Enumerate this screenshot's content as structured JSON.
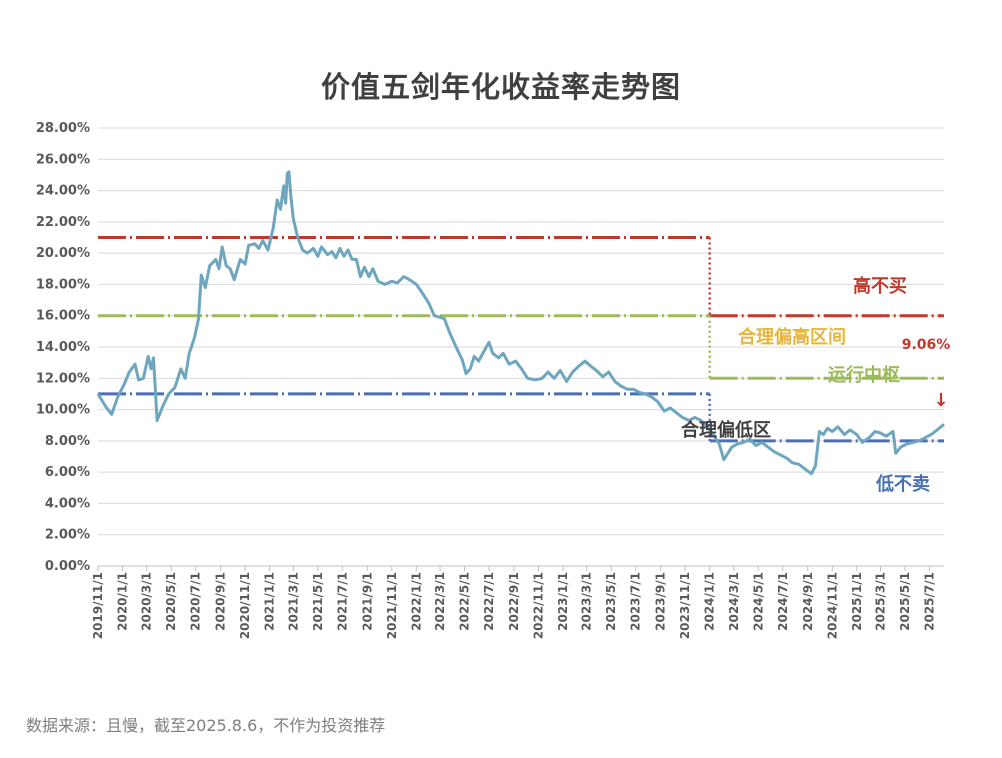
{
  "chart_data": {
    "type": "line",
    "title": "价值五剑年化收益率走势图",
    "xlabel": "",
    "ylabel": "",
    "ylim": [
      0,
      28
    ],
    "x_range": [
      "2019-11-01",
      "2025-08-06"
    ],
    "grid": true,
    "legend": "none",
    "yticks": [
      "0.00%",
      "2.00%",
      "4.00%",
      "6.00%",
      "8.00%",
      "10.00%",
      "12.00%",
      "14.00%",
      "16.00%",
      "18.00%",
      "20.00%",
      "22.00%",
      "24.00%",
      "26.00%",
      "28.00%"
    ],
    "xticks": [
      "2019/11/1",
      "2020/1/1",
      "2020/3/1",
      "2020/5/1",
      "2020/7/1",
      "2020/9/1",
      "2020/11/1",
      "2021/1/1",
      "2021/3/1",
      "2021/5/1",
      "2021/7/1",
      "2021/9/1",
      "2021/11/1",
      "2022/1/1",
      "2022/3/1",
      "2022/5/1",
      "2022/7/1",
      "2022/9/1",
      "2022/11/1",
      "2023/1/1",
      "2023/3/1",
      "2023/5/1",
      "2023/7/1",
      "2023/9/1",
      "2023/11/1",
      "2024/1/1",
      "2024/3/1",
      "2024/5/1",
      "2024/7/1",
      "2024/9/1",
      "2024/11/1",
      "2025/1/1",
      "2025/3/1",
      "2025/5/1",
      "2025/7/1"
    ],
    "series": [
      {
        "color": "#6ea6bf",
        "points": [
          [
            "2019-11-01",
            11.0
          ],
          [
            "2019-11-20",
            10.2
          ],
          [
            "2019-12-05",
            9.7
          ],
          [
            "2019-12-20",
            10.8
          ],
          [
            "2020-01-05",
            11.6
          ],
          [
            "2020-01-18",
            12.4
          ],
          [
            "2020-02-01",
            12.9
          ],
          [
            "2020-02-10",
            11.9
          ],
          [
            "2020-02-22",
            12.0
          ],
          [
            "2020-03-05",
            13.4
          ],
          [
            "2020-03-12",
            12.6
          ],
          [
            "2020-03-18",
            13.3
          ],
          [
            "2020-03-27",
            9.3
          ],
          [
            "2020-04-10",
            10.2
          ],
          [
            "2020-04-25",
            11.0
          ],
          [
            "2020-05-10",
            11.4
          ],
          [
            "2020-05-25",
            12.6
          ],
          [
            "2020-06-05",
            12.0
          ],
          [
            "2020-06-15",
            13.6
          ],
          [
            "2020-06-28",
            14.6
          ],
          [
            "2020-07-08",
            15.8
          ],
          [
            "2020-07-15",
            18.6
          ],
          [
            "2020-07-25",
            17.8
          ],
          [
            "2020-08-05",
            19.2
          ],
          [
            "2020-08-20",
            19.6
          ],
          [
            "2020-08-28",
            19.0
          ],
          [
            "2020-09-05",
            20.4
          ],
          [
            "2020-09-15",
            19.2
          ],
          [
            "2020-09-25",
            19.0
          ],
          [
            "2020-10-05",
            18.3
          ],
          [
            "2020-10-20",
            19.6
          ],
          [
            "2020-11-01",
            19.3
          ],
          [
            "2020-11-10",
            20.5
          ],
          [
            "2020-11-25",
            20.6
          ],
          [
            "2020-12-05",
            20.3
          ],
          [
            "2020-12-15",
            20.8
          ],
          [
            "2020-12-28",
            20.2
          ],
          [
            "2021-01-10",
            21.6
          ],
          [
            "2021-01-20",
            23.4
          ],
          [
            "2021-01-28",
            22.8
          ],
          [
            "2021-02-05",
            24.3
          ],
          [
            "2021-02-10",
            23.2
          ],
          [
            "2021-02-14",
            25.1
          ],
          [
            "2021-02-18",
            25.2
          ],
          [
            "2021-02-23",
            23.6
          ],
          [
            "2021-03-01",
            22.2
          ],
          [
            "2021-03-12",
            21.0
          ],
          [
            "2021-03-24",
            20.2
          ],
          [
            "2021-04-05",
            20.0
          ],
          [
            "2021-04-20",
            20.3
          ],
          [
            "2021-05-01",
            19.8
          ],
          [
            "2021-05-10",
            20.4
          ],
          [
            "2021-05-25",
            19.9
          ],
          [
            "2021-06-05",
            20.1
          ],
          [
            "2021-06-15",
            19.7
          ],
          [
            "2021-06-25",
            20.3
          ],
          [
            "2021-07-05",
            19.8
          ],
          [
            "2021-07-15",
            20.2
          ],
          [
            "2021-07-25",
            19.6
          ],
          [
            "2021-08-05",
            19.6
          ],
          [
            "2021-08-15",
            18.5
          ],
          [
            "2021-08-25",
            19.1
          ],
          [
            "2021-09-05",
            18.5
          ],
          [
            "2021-09-15",
            19.0
          ],
          [
            "2021-09-28",
            18.2
          ],
          [
            "2021-10-15",
            18.0
          ],
          [
            "2021-11-01",
            18.2
          ],
          [
            "2021-11-15",
            18.1
          ],
          [
            "2021-12-01",
            18.5
          ],
          [
            "2021-12-15",
            18.3
          ],
          [
            "2022-01-01",
            18.0
          ],
          [
            "2022-01-15",
            17.5
          ],
          [
            "2022-02-01",
            16.8
          ],
          [
            "2022-02-15",
            16.0
          ],
          [
            "2022-03-01",
            15.9
          ],
          [
            "2022-03-12",
            15.8
          ],
          [
            "2022-03-25",
            14.9
          ],
          [
            "2022-04-10",
            14.0
          ],
          [
            "2022-04-25",
            13.2
          ],
          [
            "2022-05-05",
            12.3
          ],
          [
            "2022-05-15",
            12.6
          ],
          [
            "2022-05-25",
            13.4
          ],
          [
            "2022-06-05",
            13.1
          ],
          [
            "2022-06-20",
            13.8
          ],
          [
            "2022-07-01",
            14.3
          ],
          [
            "2022-07-10",
            13.6
          ],
          [
            "2022-07-25",
            13.3
          ],
          [
            "2022-08-05",
            13.6
          ],
          [
            "2022-08-20",
            12.9
          ],
          [
            "2022-09-05",
            13.1
          ],
          [
            "2022-09-20",
            12.6
          ],
          [
            "2022-10-05",
            12.0
          ],
          [
            "2022-10-25",
            11.9
          ],
          [
            "2022-11-10",
            12.0
          ],
          [
            "2022-11-25",
            12.4
          ],
          [
            "2022-12-10",
            12.0
          ],
          [
            "2022-12-25",
            12.5
          ],
          [
            "2023-01-10",
            11.8
          ],
          [
            "2023-01-25",
            12.4
          ],
          [
            "2023-02-10",
            12.8
          ],
          [
            "2023-02-25",
            13.1
          ],
          [
            "2023-03-10",
            12.8
          ],
          [
            "2023-03-25",
            12.5
          ],
          [
            "2023-04-10",
            12.1
          ],
          [
            "2023-04-25",
            12.4
          ],
          [
            "2023-05-10",
            11.8
          ],
          [
            "2023-05-25",
            11.5
          ],
          [
            "2023-06-10",
            11.3
          ],
          [
            "2023-06-25",
            11.3
          ],
          [
            "2023-07-10",
            11.1
          ],
          [
            "2023-07-25",
            11.0
          ],
          [
            "2023-08-10",
            10.8
          ],
          [
            "2023-08-25",
            10.5
          ],
          [
            "2023-09-10",
            9.9
          ],
          [
            "2023-09-25",
            10.1
          ],
          [
            "2023-10-10",
            9.8
          ],
          [
            "2023-10-25",
            9.5
          ],
          [
            "2023-11-10",
            9.3
          ],
          [
            "2023-11-25",
            9.5
          ],
          [
            "2023-12-10",
            9.3
          ],
          [
            "2023-12-25",
            8.9
          ],
          [
            "2024-01-10",
            8.4
          ],
          [
            "2024-01-25",
            7.8
          ],
          [
            "2024-02-05",
            6.8
          ],
          [
            "2024-02-15",
            7.2
          ],
          [
            "2024-02-25",
            7.6
          ],
          [
            "2024-03-10",
            7.8
          ],
          [
            "2024-03-25",
            7.9
          ],
          [
            "2024-04-10",
            8.1
          ],
          [
            "2024-04-25",
            7.7
          ],
          [
            "2024-05-10",
            7.9
          ],
          [
            "2024-05-25",
            7.6
          ],
          [
            "2024-06-10",
            7.3
          ],
          [
            "2024-06-25",
            7.1
          ],
          [
            "2024-07-10",
            6.9
          ],
          [
            "2024-07-25",
            6.6
          ],
          [
            "2024-08-10",
            6.5
          ],
          [
            "2024-08-25",
            6.2
          ],
          [
            "2024-09-10",
            5.9
          ],
          [
            "2024-09-20",
            6.4
          ],
          [
            "2024-09-30",
            8.6
          ],
          [
            "2024-10-10",
            8.4
          ],
          [
            "2024-10-20",
            8.8
          ],
          [
            "2024-11-01",
            8.6
          ],
          [
            "2024-11-15",
            8.9
          ],
          [
            "2024-12-01",
            8.4
          ],
          [
            "2024-12-15",
            8.7
          ],
          [
            "2025-01-01",
            8.4
          ],
          [
            "2025-01-15",
            7.9
          ],
          [
            "2025-02-01",
            8.2
          ],
          [
            "2025-02-15",
            8.6
          ],
          [
            "2025-03-01",
            8.5
          ],
          [
            "2025-03-15",
            8.3
          ],
          [
            "2025-04-01",
            8.6
          ],
          [
            "2025-04-08",
            7.2
          ],
          [
            "2025-04-20",
            7.6
          ],
          [
            "2025-05-05",
            7.8
          ],
          [
            "2025-05-20",
            7.9
          ],
          [
            "2025-06-05",
            8.0
          ],
          [
            "2025-06-20",
            8.2
          ],
          [
            "2025-07-05",
            8.4
          ],
          [
            "2025-07-20",
            8.7
          ],
          [
            "2025-08-06",
            9.06
          ]
        ]
      }
    ],
    "reference_levels": [
      {
        "value": 21,
        "from": "2019-11-01",
        "to": "2024-01-01",
        "color": "#c0392b",
        "style": "dashed"
      },
      {
        "value": 16,
        "from": "2024-01-01",
        "to": "2025-08-06",
        "color": "#c0392b",
        "style": "dashed",
        "label": "高不买"
      },
      {
        "value": 16,
        "from": "2019-11-01",
        "to": "2024-01-01",
        "color": "#9bbb59",
        "style": "dashed"
      },
      {
        "value": 12,
        "from": "2024-01-01",
        "to": "2025-08-06",
        "color": "#9bbb59",
        "style": "dashed",
        "label": "运行中枢"
      },
      {
        "value": 11,
        "from": "2019-11-01",
        "to": "2024-01-01",
        "color": "#4a6fb3",
        "style": "dashed"
      },
      {
        "value": 8,
        "from": "2024-01-01",
        "to": "2025-08-06",
        "color": "#4a6fb3",
        "style": "dashed",
        "label": "低不卖"
      }
    ],
    "annotations": {
      "high_zone": "合理偏高区间",
      "low_zone": "合理偏低区",
      "latest_value": "9.06%",
      "arrow": "↓"
    },
    "colors": {
      "line": "#6ea6bf",
      "red": "#c0392b",
      "green": "#9bbb59",
      "blue": "#4a6fb3",
      "yellow": "#e7b53d",
      "grid": "#d9d9d9"
    }
  },
  "footer": {
    "source": "数据来源：且慢，截至2025.8.6，不作为投资推荐"
  }
}
